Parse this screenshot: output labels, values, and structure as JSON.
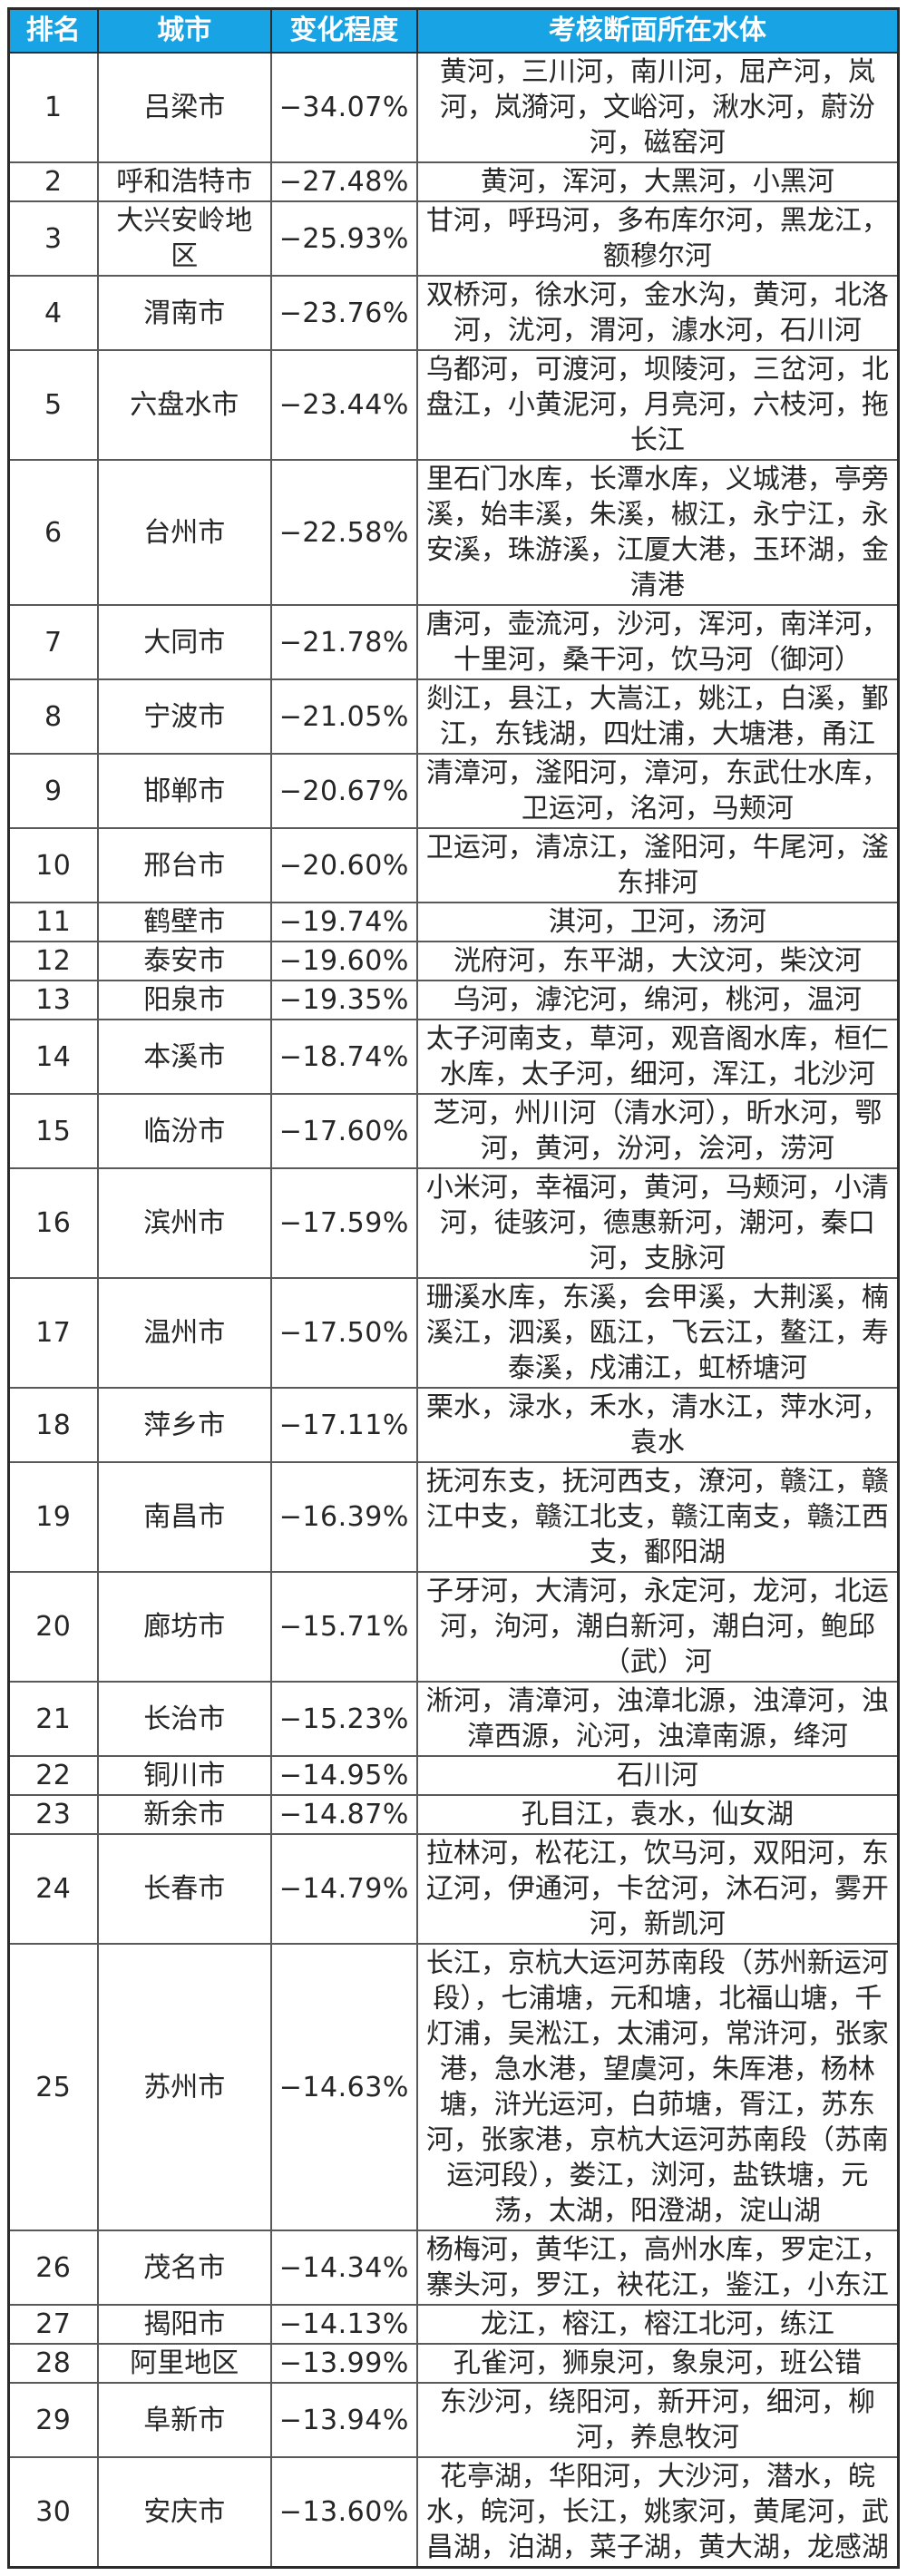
{
  "colors": {
    "header_bg": "#18a4e4",
    "header_text": "#ffffff",
    "grid_border": "#595959",
    "outer_border": "#2b2b2b",
    "body_text": "#262626"
  },
  "table": {
    "headers": [
      "排名",
      "城市",
      "变化程度",
      "考核断面所在水体"
    ],
    "rows": [
      {
        "rank": "1",
        "city": "吕梁市",
        "change": "−34.07%",
        "waters": "黄河，三川河，南川河，屈产河，岚河，岚漪河，文峪河，湫水河，蔚汾河，磁窑河"
      },
      {
        "rank": "2",
        "city": "呼和浩特市",
        "change": "−27.48%",
        "waters": "黄河，浑河，大黑河，小黑河"
      },
      {
        "rank": "3",
        "city": "大兴安岭地区",
        "change": "−25.93%",
        "waters": "甘河，呼玛河，多布库尔河，黑龙江，额穆尔河"
      },
      {
        "rank": "4",
        "city": "渭南市",
        "change": "−23.76%",
        "waters": "双桥河，徐水河，金水沟，黄河，北洛河，沋河，渭河，澽水河，石川河"
      },
      {
        "rank": "5",
        "city": "六盘水市",
        "change": "−23.44%",
        "waters": "乌都河，可渡河，坝陵河，三岔河，北盘江，小黄泥河，月亮河，六枝河，拖长江"
      },
      {
        "rank": "6",
        "city": "台州市",
        "change": "−22.58%",
        "waters": "里石门水库，长潭水库，义城港，亭旁溪，始丰溪，朱溪，椒江，永宁江，永安溪，珠游溪，江厦大港，玉环湖，金清港"
      },
      {
        "rank": "7",
        "city": "大同市",
        "change": "−21.78%",
        "waters": "唐河，壶流河，沙河，浑河，南洋河，十里河，桑干河，饮马河（御河）"
      },
      {
        "rank": "8",
        "city": "宁波市",
        "change": "−21.05%",
        "waters": "剡江，县江，大嵩江，姚江，白溪，鄞江，东钱湖，四灶浦，大塘港，甬江"
      },
      {
        "rank": "9",
        "city": "邯郸市",
        "change": "−20.67%",
        "waters": "清漳河，滏阳河，漳河，东武仕水库，卫运河，洺河，马颊河"
      },
      {
        "rank": "10",
        "city": "邢台市",
        "change": "−20.60%",
        "waters": "卫运河，清凉江，滏阳河，牛尾河，滏东排河"
      },
      {
        "rank": "11",
        "city": "鹤壁市",
        "change": "−19.74%",
        "waters": "淇河，卫河，汤河"
      },
      {
        "rank": "12",
        "city": "泰安市",
        "change": "−19.60%",
        "waters": "洸府河，东平湖，大汶河，柴汶河"
      },
      {
        "rank": "13",
        "city": "阳泉市",
        "change": "−19.35%",
        "waters": "乌河，滹沱河，绵河，桃河，温河"
      },
      {
        "rank": "14",
        "city": "本溪市",
        "change": "−18.74%",
        "waters": "太子河南支，草河，观音阁水库，桓仁水库，太子河，细河，浑江，北沙河"
      },
      {
        "rank": "15",
        "city": "临汾市",
        "change": "−17.60%",
        "waters": "芝河，州川河（清水河），昕水河，鄂河，黄河，汾河，浍河，涝河"
      },
      {
        "rank": "16",
        "city": "滨州市",
        "change": "−17.59%",
        "waters": "小米河，幸福河，黄河，马颊河，小清河，徒骇河，德惠新河，潮河，秦口河，支脉河"
      },
      {
        "rank": "17",
        "city": "温州市",
        "change": "−17.50%",
        "waters": "珊溪水库，东溪，会甲溪，大荆溪，楠溪江，泗溪，瓯江，飞云江，鳌江，寿泰溪，戍浦江，虹桥塘河"
      },
      {
        "rank": "18",
        "city": "萍乡市",
        "change": "−17.11%",
        "waters": "栗水，渌水，禾水，清水江，萍水河，袁水"
      },
      {
        "rank": "19",
        "city": "南昌市",
        "change": "−16.39%",
        "waters": "抚河东支，抚河西支，潦河，赣江，赣江中支，赣江北支，赣江南支，赣江西支，鄱阳湖"
      },
      {
        "rank": "20",
        "city": "廊坊市",
        "change": "−15.71%",
        "waters": "子牙河，大清河，永定河，龙河，北运河，泃河，潮白新河，潮白河，鲍邱（武）河"
      },
      {
        "rank": "21",
        "city": "长治市",
        "change": "−15.23%",
        "waters": "淅河，清漳河，浊漳北源，浊漳河，浊漳西源，沁河，浊漳南源，绛河"
      },
      {
        "rank": "22",
        "city": "铜川市",
        "change": "−14.95%",
        "waters": "石川河"
      },
      {
        "rank": "23",
        "city": "新余市",
        "change": "−14.87%",
        "waters": "孔目江，袁水，仙女湖"
      },
      {
        "rank": "24",
        "city": "长春市",
        "change": "−14.79%",
        "waters": "拉林河，松花江，饮马河，双阳河，东辽河，伊通河，卡岔河，沐石河，雾开河，新凯河"
      },
      {
        "rank": "25",
        "city": "苏州市",
        "change": "−14.63%",
        "waters": "长江，京杭大运河苏南段（苏州新运河段），七浦塘，元和塘，北福山塘，千灯浦，吴淞江，太浦河，常浒河，张家港，急水港，望虞河，朱厍港，杨林塘，浒光运河，白茆塘，胥江，苏东河，张家港，京杭大运河苏南段（苏南运河段），娄江，浏河，盐铁塘，元荡，太湖，阳澄湖，淀山湖"
      },
      {
        "rank": "26",
        "city": "茂名市",
        "change": "−14.34%",
        "waters": "杨梅河，黄华江，高州水库，罗定江，寨头河，罗江，袂花江，鉴江，小东江"
      },
      {
        "rank": "27",
        "city": "揭阳市",
        "change": "−14.13%",
        "waters": "龙江，榕江，榕江北河，练江"
      },
      {
        "rank": "28",
        "city": "阿里地区",
        "change": "−13.99%",
        "waters": "孔雀河，狮泉河，象泉河，班公错"
      },
      {
        "rank": "29",
        "city": "阜新市",
        "change": "−13.94%",
        "waters": "东沙河，绕阳河，新开河，细河，柳河，养息牧河"
      },
      {
        "rank": "30",
        "city": "安庆市",
        "change": "−13.60%",
        "waters": "花亭湖，华阳河，大沙河，潜水，皖水，皖河，长江，姚家河，黄尾河，武昌湖，泊湖，菜子湖，黄大湖，龙感湖"
      }
    ]
  }
}
